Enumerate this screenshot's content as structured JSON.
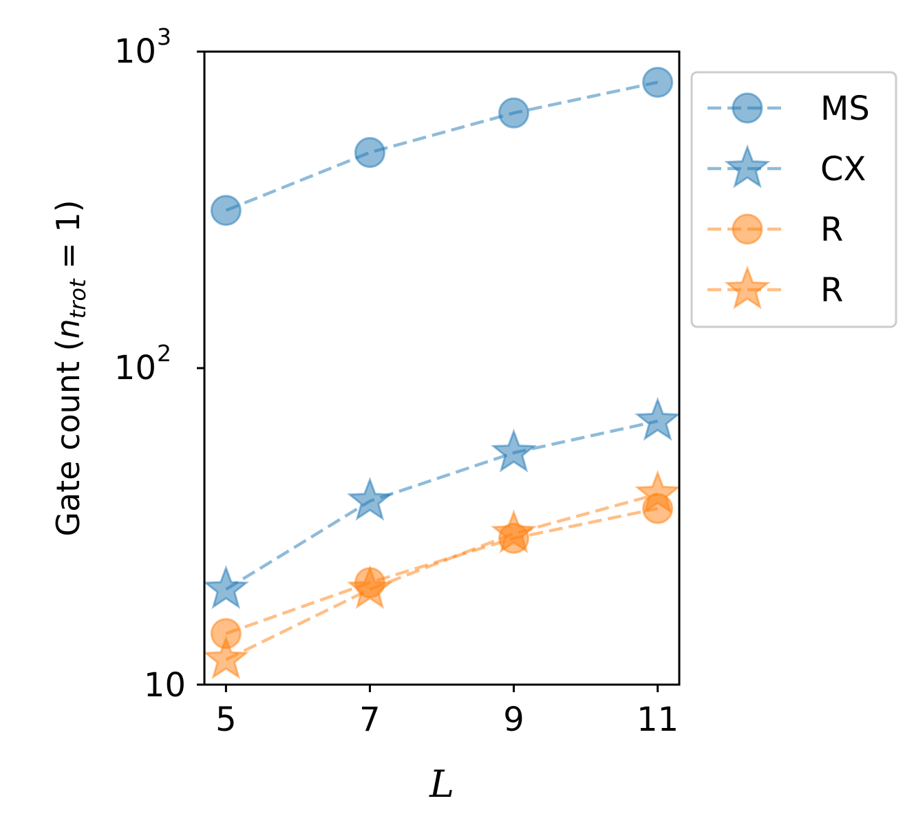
{
  "chart_data": {
    "type": "line",
    "title": "",
    "xlabel": "L",
    "ylabel": {
      "prefix": "Gate count (",
      "n": "n",
      "sub": "trot",
      "eq": " = 1)"
    },
    "yscale": "log",
    "ylim": [
      10,
      1000
    ],
    "xlim": [
      4.7,
      11.3
    ],
    "x": [
      5,
      7,
      9,
      11
    ],
    "xticks": [
      "5",
      "7",
      "9",
      "11"
    ],
    "yticks": [
      {
        "value": 10,
        "base": "10",
        "exp": ""
      },
      {
        "value": 100,
        "base": "10",
        "exp": "2"
      },
      {
        "value": 1000,
        "base": "10",
        "exp": "3"
      }
    ],
    "legend_position": "outside-top-right",
    "series": [
      {
        "name": "MS",
        "color": "#1f77b4",
        "marker": "circle",
        "values": [
          315,
          480,
          640,
          800
        ]
      },
      {
        "name": "CX",
        "color": "#1f77b4",
        "marker": "star",
        "values": [
          20,
          38,
          54,
          68
        ]
      },
      {
        "name": "R",
        "color": "#ff7f0e",
        "marker": "circle",
        "values": [
          14.5,
          21,
          29,
          36
        ]
      },
      {
        "name": "R",
        "color": "#ff7f0e",
        "marker": "star",
        "values": [
          12,
          20,
          30,
          40
        ]
      }
    ]
  }
}
